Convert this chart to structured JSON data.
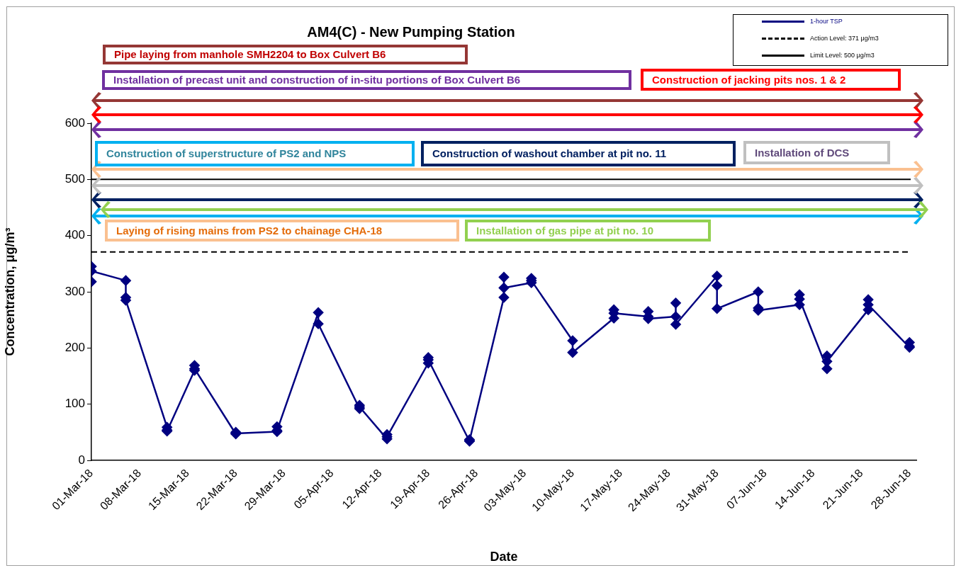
{
  "chart_data": {
    "type": "line",
    "title": "AM4(C) - New Pumping Station",
    "xlabel": "Date",
    "ylabel": "Concentration, μg/m³",
    "x": [
      "--03-01",
      "--03-01",
      "--03-01",
      "--03-06",
      "--03-06",
      "--03-06",
      "--03-12",
      "--03-12",
      "--03-12",
      "--03-16",
      "--03-16",
      "--03-16",
      "--03-22",
      "--03-22",
      "--03-22",
      "--03-28",
      "--03-28",
      "--03-28",
      "--04-03",
      "--04-03",
      "--04-09",
      "--04-09",
      "--04-09",
      "--04-13",
      "--04-13",
      "--04-13",
      "--04-19",
      "--04-19",
      "--04-19",
      "--04-25",
      "--04-25",
      "--04-25",
      "--04-30",
      "--04-30",
      "--04-30",
      "--05-04",
      "--05-04",
      "--05-04",
      "--05-10",
      "--05-10",
      "--05-16",
      "--05-16",
      "--05-16",
      "--05-21",
      "--05-21",
      "--05-21",
      "--05-25",
      "--05-25",
      "--05-25",
      "--05-31",
      "--05-31",
      "--05-31",
      "--06-06",
      "--06-06",
      "--06-06",
      "--06-12",
      "--06-12",
      "--06-12",
      "--06-16",
      "--06-16",
      "--06-16",
      "--06-22",
      "--06-22",
      "--06-22",
      "--06-28",
      "--06-28",
      "--06-28"
    ],
    "series": [
      {
        "name": "1-hour TSP",
        "color": "#000080",
        "values": [
          318,
          345,
          337,
          320,
          290,
          285,
          59,
          54,
          52,
          160,
          169,
          163,
          47,
          50,
          48,
          51,
          60,
          53,
          263,
          243,
          92,
          98,
          95,
          38,
          46,
          42,
          173,
          183,
          179,
          34,
          37,
          35,
          290,
          326,
          307,
          316,
          324,
          320,
          213,
          192,
          253,
          268,
          262,
          256,
          265,
          252,
          256,
          280,
          242,
          328,
          311,
          270,
          300,
          271,
          267,
          277,
          295,
          287,
          163,
          186,
          176,
          268,
          286,
          277,
          201,
          210,
          203
        ]
      }
    ],
    "xlim": [
      "--03-01",
      "--06-29"
    ],
    "xticks": [
      {
        "value": "--03-01",
        "label": "01-Mar-18"
      },
      {
        "value": "--03-08",
        "label": "08-Mar-18"
      },
      {
        "value": "--03-15",
        "label": "15-Mar-18"
      },
      {
        "value": "--03-22",
        "label": "22-Mar-18"
      },
      {
        "value": "--03-29",
        "label": "29-Mar-18"
      },
      {
        "value": "--04-05",
        "label": "05-Apr-18"
      },
      {
        "value": "--04-12",
        "label": "12-Apr-18"
      },
      {
        "value": "--04-19",
        "label": "19-Apr-18"
      },
      {
        "value": "--04-26",
        "label": "26-Apr-18"
      },
      {
        "value": "--05-03",
        "label": "03-May-18"
      },
      {
        "value": "--05-10",
        "label": "10-May-18"
      },
      {
        "value": "--05-17",
        "label": "17-May-18"
      },
      {
        "value": "--05-24",
        "label": "24-May-18"
      },
      {
        "value": "--05-31",
        "label": "31-May-18"
      },
      {
        "value": "--06-07",
        "label": "07-Jun-18"
      },
      {
        "value": "--06-14",
        "label": "14-Jun-18"
      },
      {
        "value": "--06-21",
        "label": "21-Jun-18"
      },
      {
        "value": "--06-28",
        "label": "28-Jun-18"
      }
    ],
    "ylim": [
      0,
      600
    ],
    "yticks": [
      0,
      100,
      200,
      300,
      400,
      500,
      600
    ],
    "marker": "diamond",
    "legend": "top right",
    "ref_lines": [
      {
        "axis": "y",
        "value": 371,
        "label": "Action Level: 371 μg/m3",
        "line_style": "dashed",
        "color": "#000000"
      },
      {
        "axis": "y",
        "value": 500,
        "label": "Limit Level: 500 μg/m3",
        "line_style": "solid",
        "color": "#000000"
      }
    ],
    "annotations": [
      "Pipe laying from manhole SMH2204 to Box Culvert B6",
      "Installation of precast unit and construction of in-situ portions of Box Culvert B6",
      "Construction of jacking pits nos. 1 & 2",
      "Construction of superstructure of PS2 and NPS",
      "Construction of washout chamber at pit no. 11",
      "Installation of DCS",
      "Laying of rising mains from PS2 to chainage CHA-18",
      "Installation of gas pipe at pit no. 10"
    ]
  }
}
